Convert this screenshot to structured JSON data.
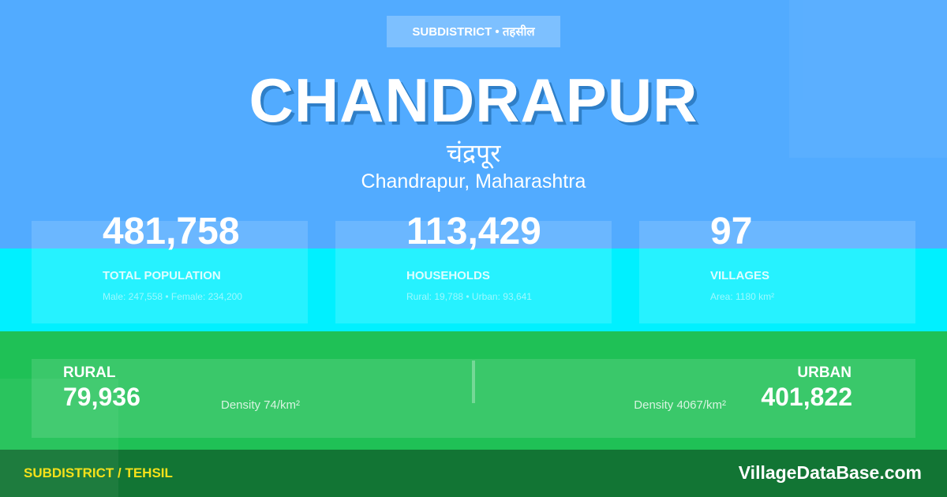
{
  "badge": "SUBDISTRICT • तहसील",
  "title": "CHANDRAPUR",
  "title_hindi": "चंद्रपूर",
  "location": "Chandrapur, Maharashtra",
  "stats": [
    {
      "value": "481,758",
      "label": "TOTAL POPULATION",
      "sub": "Male: 247,558 • Female: 234,200"
    },
    {
      "value": "113,429",
      "label": "HOUSEHOLDS",
      "sub": "Rural: 19,788 • Urban: 93,641"
    },
    {
      "value": "97",
      "label": "VILLAGES",
      "sub": "Area: 1180 km²"
    }
  ],
  "rural": {
    "label": "RURAL",
    "value": "79,936",
    "density": "Density 74/km²"
  },
  "urban": {
    "label": "URBAN",
    "value": "401,822",
    "density": "Density 4067/km²"
  },
  "footer": {
    "type": "SUBDISTRICT / TEHSIL",
    "site": "VillageDataBase.com"
  },
  "colors": {
    "top": "#52abff",
    "band": "#00f0ff",
    "green": "#1fc156",
    "footer": "#127534",
    "accent": "#f5e11a"
  }
}
